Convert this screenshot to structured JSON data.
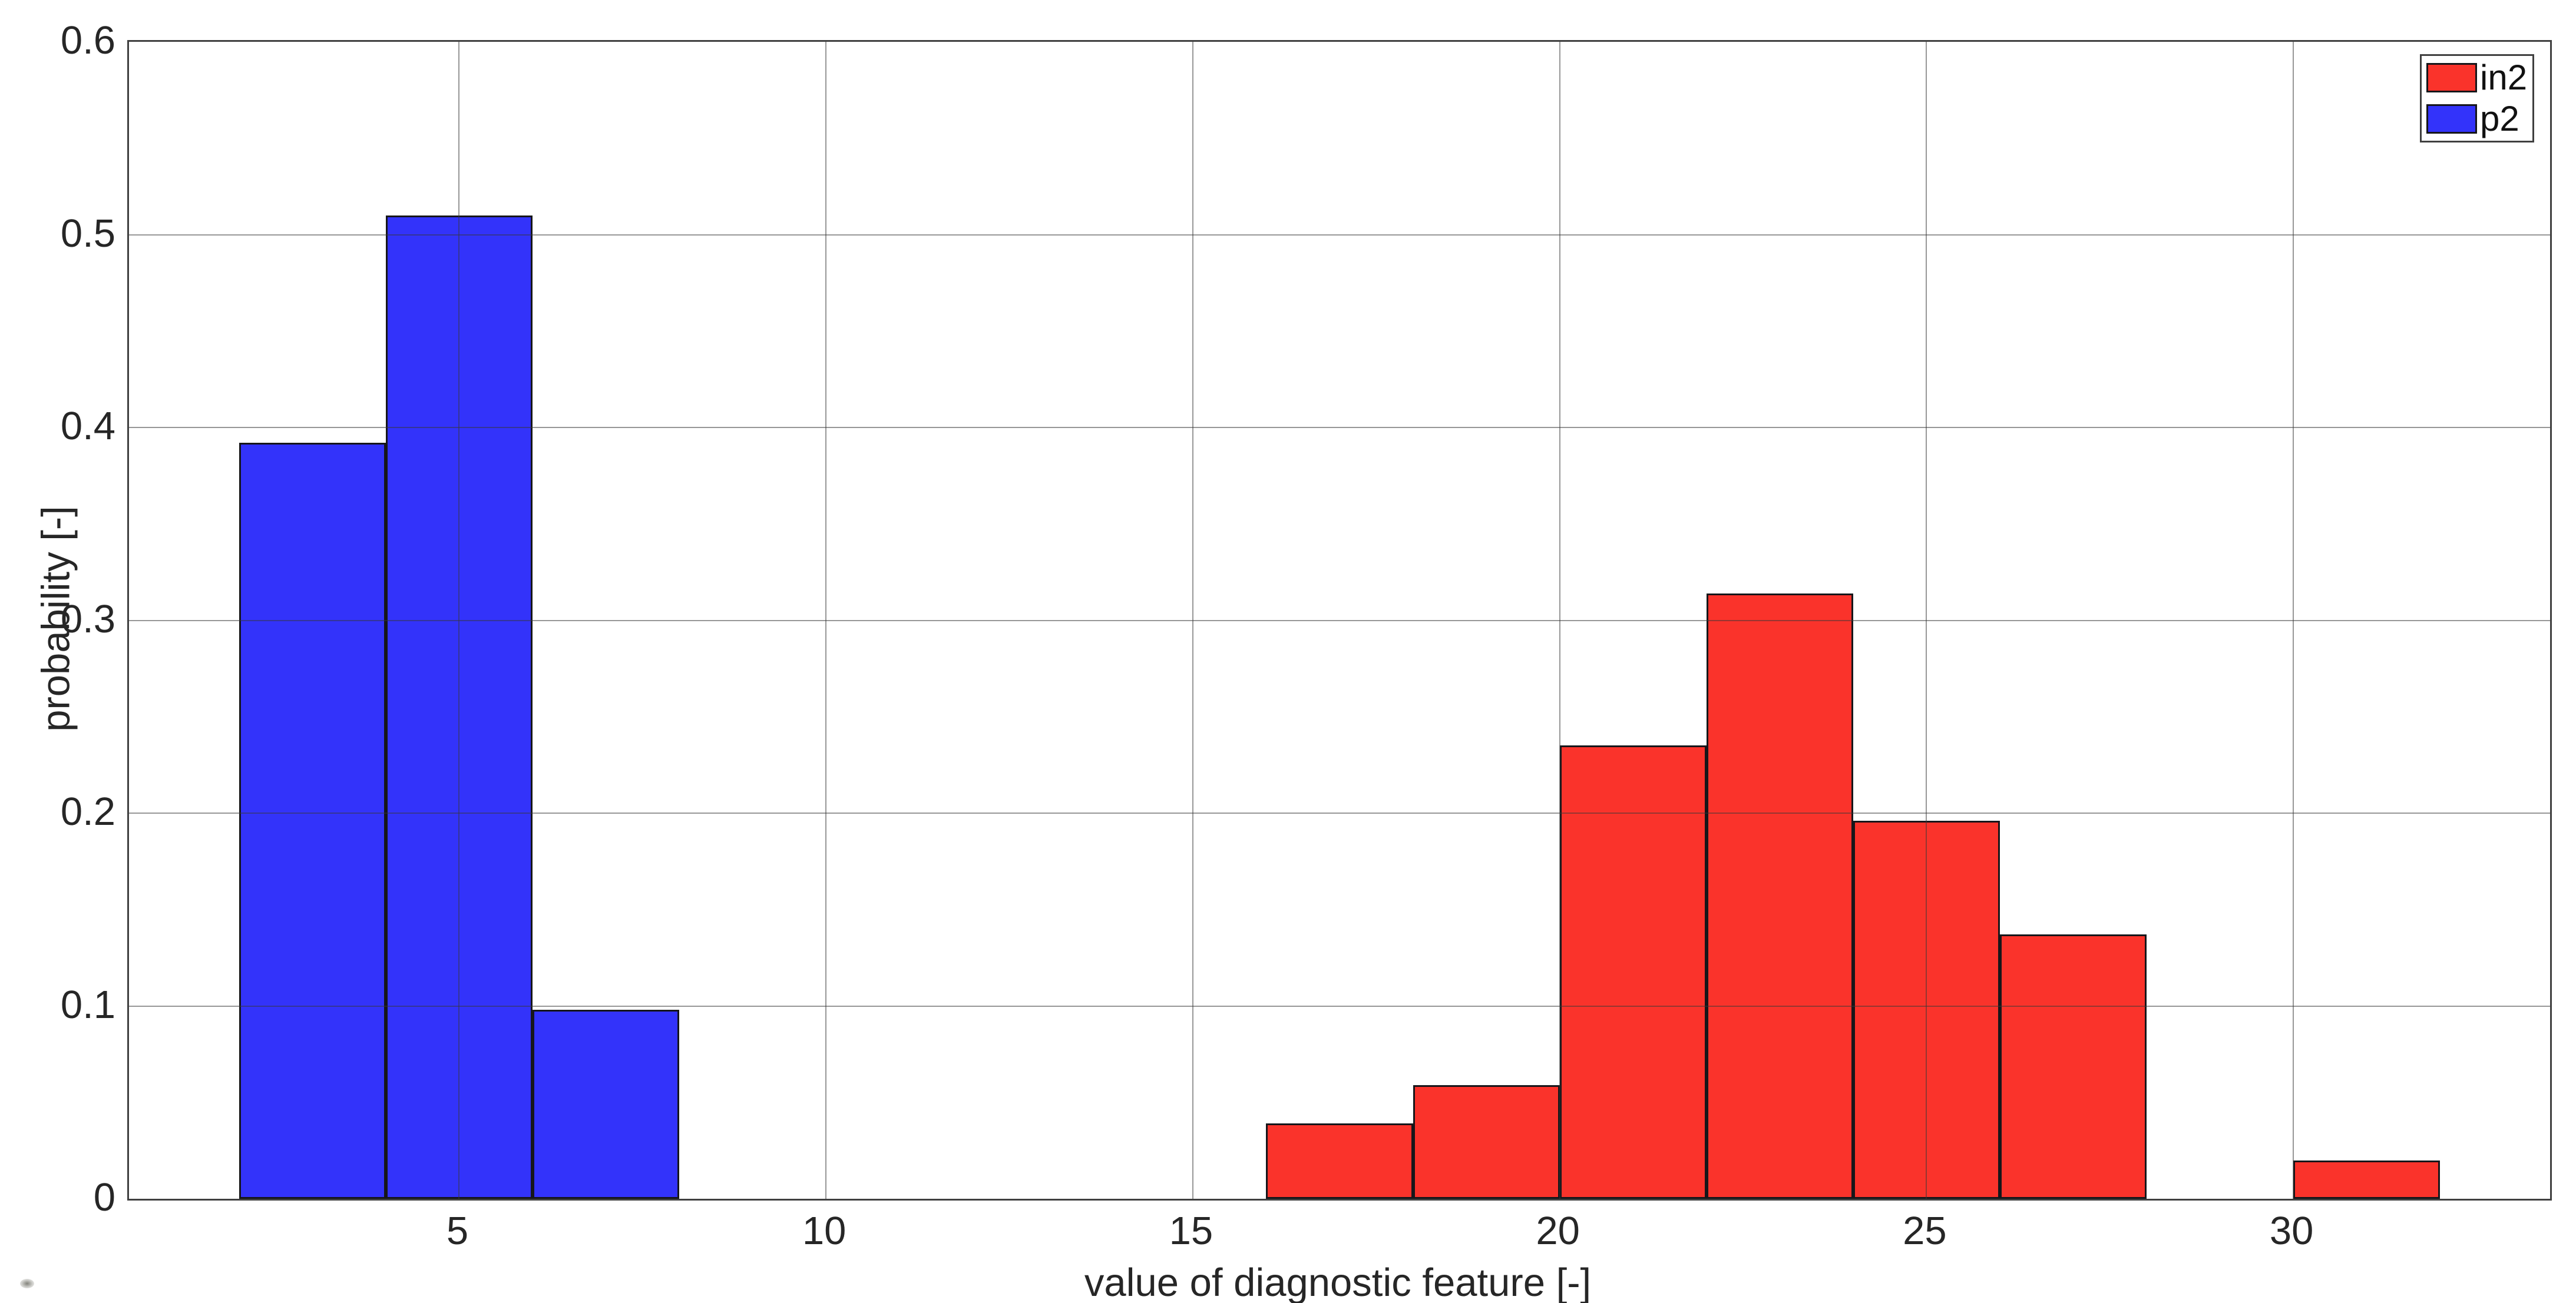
{
  "chart_data": {
    "type": "bar",
    "subtype": "histogram",
    "title": "",
    "xlabel": "value of diagnostic feature [-]",
    "ylabel": "probability [-]",
    "xlim": [
      0.5,
      33.5
    ],
    "ylim": [
      0,
      0.6
    ],
    "xticks": [
      5,
      10,
      15,
      20,
      25,
      30
    ],
    "xtick_labels": [
      "5",
      "10",
      "15",
      "20",
      "25",
      "30"
    ],
    "yticks": [
      0,
      0.1,
      0.2,
      0.3,
      0.4,
      0.5,
      0.6
    ],
    "ytick_labels": [
      "0",
      "0.1",
      "0.2",
      "0.3",
      "0.4",
      "0.5",
      "0.6"
    ],
    "grid": true,
    "grid_over_bars": true,
    "box": true,
    "bin_width": 2,
    "legend_position": "top-right",
    "series": [
      {
        "name": "in2",
        "color": "#fa332b",
        "edge_color": "#16161a",
        "bin_left_edges": [
          16,
          18,
          20,
          22,
          24,
          26,
          28,
          30
        ],
        "values": [
          0.039,
          0.059,
          0.235,
          0.314,
          0.196,
          0.137,
          0,
          0.02
        ]
      },
      {
        "name": "p2",
        "color": "#3333fa",
        "edge_color": "#16161a",
        "bin_left_edges": [
          2,
          4,
          6
        ],
        "values": [
          0.392,
          0.51,
          0.098
        ]
      }
    ]
  },
  "legend": {
    "entries": [
      {
        "label": "in2",
        "color": "#fa332b"
      },
      {
        "label": "p2",
        "color": "#3333fa"
      }
    ]
  },
  "colors": {
    "background": "#ffffff",
    "axis_box": "#404040",
    "grid": "rgba(55,55,55,0.52)",
    "tick_text": "#262626",
    "red_series": "#fa332b",
    "blue_series": "#3333fa"
  }
}
